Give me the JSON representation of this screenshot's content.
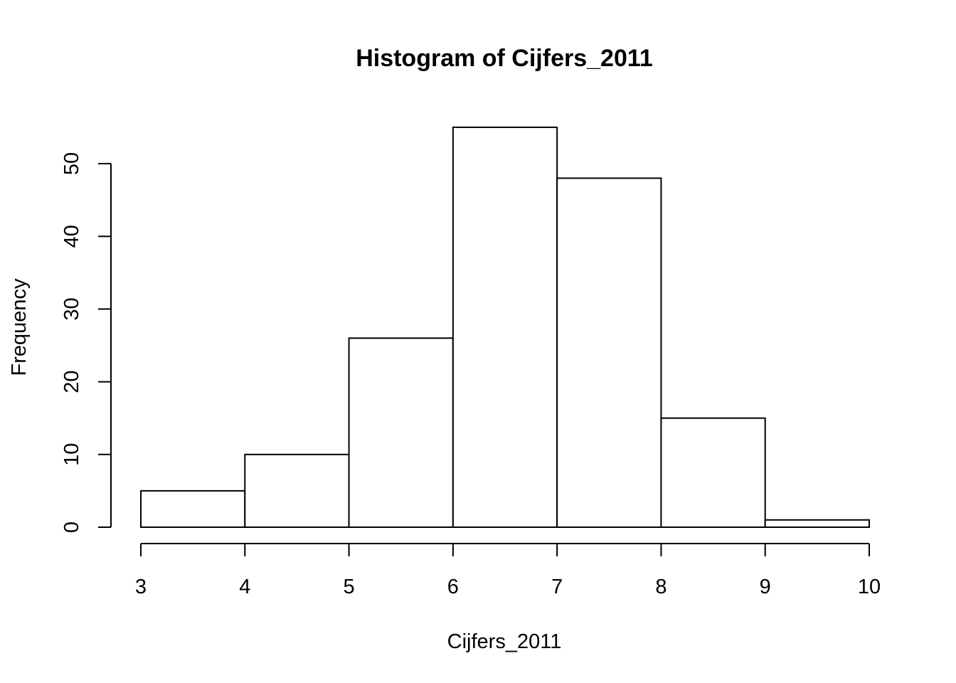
{
  "chart_data": {
    "type": "bar",
    "title": "Histogram of Cijfers_2011",
    "xlabel": "Cijfers_2011",
    "ylabel": "Frequency",
    "bins": [
      {
        "from": 3,
        "to": 4,
        "count": 5
      },
      {
        "from": 4,
        "to": 5,
        "count": 10
      },
      {
        "from": 5,
        "to": 6,
        "count": 26
      },
      {
        "from": 6,
        "to": 7,
        "count": 55
      },
      {
        "from": 7,
        "to": 8,
        "count": 48
      },
      {
        "from": 8,
        "to": 9,
        "count": 15
      },
      {
        "from": 9,
        "to": 10,
        "count": 1
      }
    ],
    "xlim": [
      3,
      10
    ],
    "ylim": [
      0,
      55
    ],
    "x_ticks": [
      "3",
      "4",
      "5",
      "6",
      "7",
      "8",
      "9",
      "10"
    ],
    "y_ticks": [
      "0",
      "10",
      "20",
      "30",
      "40",
      "50"
    ],
    "grid": false,
    "legend": "none"
  }
}
